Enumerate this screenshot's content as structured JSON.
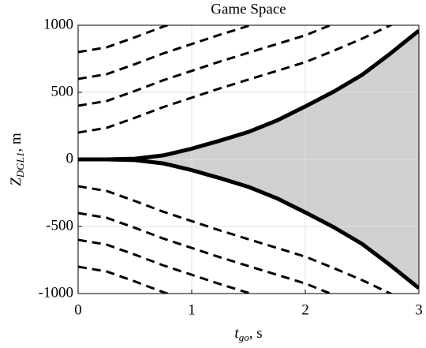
{
  "chart_data": {
    "type": "line",
    "title": "Game Space",
    "x_label": {
      "symbol": "t",
      "subscript": "go",
      "unit": ", s"
    },
    "y_label": {
      "symbol": "Z",
      "subscript": "DGL1",
      "unit": ", m"
    },
    "x": [
      0,
      0.25,
      0.5,
      0.75,
      1,
      1.25,
      1.5,
      1.75,
      2,
      2.25,
      2.5,
      2.75,
      3
    ],
    "series": [
      {
        "color": "#000000",
        "style": "solid",
        "values": [
          0,
          0,
          5,
          30,
          80,
          140,
          205,
          290,
          395,
          505,
          630,
          790,
          960
        ]
      },
      {
        "color": "#000000",
        "style": "solid",
        "values": [
          0,
          0,
          -5,
          -30,
          -80,
          -140,
          -205,
          -290,
          -395,
          -505,
          -630,
          -790,
          -960
        ]
      },
      {
        "color": "#000000",
        "style": "dashed",
        "values": [
          800,
          835,
          910,
          990,
          1060,
          null,
          null,
          null,
          null,
          null,
          null,
          null,
          null
        ]
      },
      {
        "color": "#000000",
        "style": "dashed",
        "values": [
          600,
          635,
          710,
          790,
          860,
          930,
          995,
          1060,
          null,
          null,
          null,
          null,
          null
        ]
      },
      {
        "color": "#000000",
        "style": "dashed",
        "values": [
          400,
          435,
          510,
          590,
          660,
          730,
          795,
          860,
          925,
          1010,
          null,
          null,
          null
        ]
      },
      {
        "color": "#000000",
        "style": "dashed",
        "values": [
          200,
          235,
          310,
          390,
          460,
          530,
          595,
          660,
          725,
          810,
          900,
          1000,
          1100
        ]
      },
      {
        "color": "#000000",
        "style": "dashed",
        "values": [
          -200,
          -235,
          -310,
          -390,
          -460,
          -530,
          -595,
          -660,
          -725,
          -810,
          -900,
          -1000,
          -1100
        ]
      },
      {
        "color": "#000000",
        "style": "dashed",
        "values": [
          -400,
          -435,
          -510,
          -590,
          -660,
          -730,
          -795,
          -860,
          -925,
          -1010,
          null,
          null,
          null
        ]
      },
      {
        "color": "#000000",
        "style": "dashed",
        "values": [
          -600,
          -635,
          -710,
          -790,
          -860,
          -930,
          -995,
          -1060,
          null,
          null,
          null,
          null,
          null
        ]
      },
      {
        "color": "#000000",
        "style": "dashed",
        "values": [
          -800,
          -835,
          -910,
          -990,
          -1060,
          null,
          null,
          null,
          null,
          null,
          null,
          null,
          null
        ]
      }
    ],
    "fill_between": [
      0,
      1
    ],
    "fill_color": "#d0d0d0",
    "xlim": [
      0,
      3
    ],
    "xticks": [
      0,
      1,
      2,
      3
    ],
    "ylim": [
      -1000,
      1000
    ],
    "yticks": [
      -1000,
      -500,
      0,
      500,
      1000
    ],
    "grid": true
  }
}
